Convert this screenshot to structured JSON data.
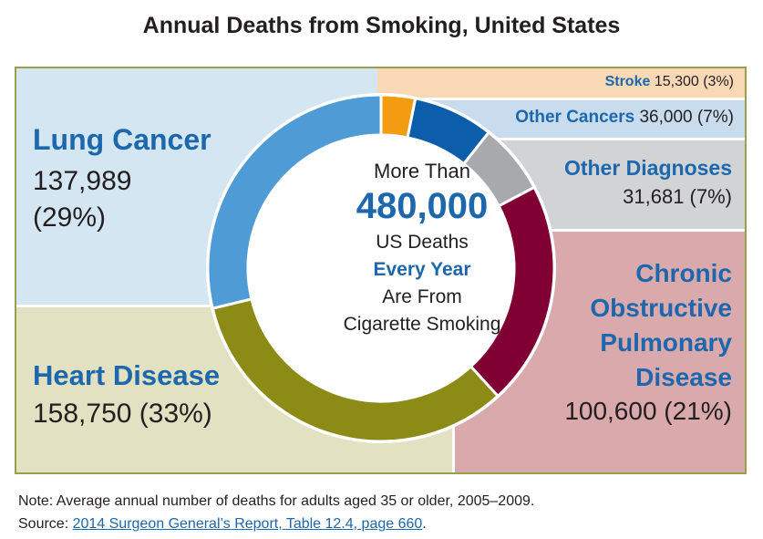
{
  "title": "Annual Deaths from Smoking, United States",
  "center": {
    "line1": "More Than",
    "number": "480,000",
    "line3": "US Deaths",
    "line4": "Every Year",
    "line5": "Are From",
    "line6": "Cigarette Smoking"
  },
  "labels": {
    "lung_name": "Lung Cancer",
    "lung_value": "137,989",
    "lung_pct": "(29%)",
    "heart_name": "Heart Disease",
    "heart_value": "158,750 (33%)",
    "stroke_name": "Stroke",
    "stroke_value": "15,300 (3%)",
    "oc_name": "Other Cancers",
    "oc_value": "36,000 (7%)",
    "od_name": "Other Diagnoses",
    "od_value": "31,681 (7%)",
    "copd_line1": "Chronic",
    "copd_line2": "Obstructive",
    "copd_line3": "Pulmonary",
    "copd_line4": "Disease",
    "copd_value": "100,600 (21%)"
  },
  "note": "Note: Average annual number of deaths for adults aged 35 or older, 2005–2009.",
  "source_prefix": "Source: ",
  "source_link": "2014 Surgeon General’s Report, Table 12.4, page 660",
  "source_suffix": ".",
  "colors": {
    "region_lung": "#d5e6f3",
    "region_heart": "#e2e1c2",
    "region_stroke": "#f9d8b5",
    "region_other_cancers": "#c9dcee",
    "region_other_diagnoses": "#d2d3d5",
    "region_copd": "#d9a9ac",
    "frame": "#9aa04a",
    "accent_text": "#1d67ad"
  },
  "chart_data": {
    "type": "pie",
    "style": "donut",
    "categories": [
      "Stroke",
      "Other Cancers",
      "Other Diagnoses",
      "Chronic Obstructive Pulmonary Disease",
      "Heart Disease",
      "Lung Cancer"
    ],
    "values": [
      15300,
      36000,
      31681,
      100600,
      158750,
      137989
    ],
    "percent_labels": [
      "3%",
      "7%",
      "7%",
      "21%",
      "33%",
      "29%"
    ],
    "colors": [
      "#f39c12",
      "#0d5eaa",
      "#a7a9ac",
      "#800033",
      "#8b8b16",
      "#4f9bd5"
    ],
    "start": "top",
    "direction": "clockwise"
  }
}
